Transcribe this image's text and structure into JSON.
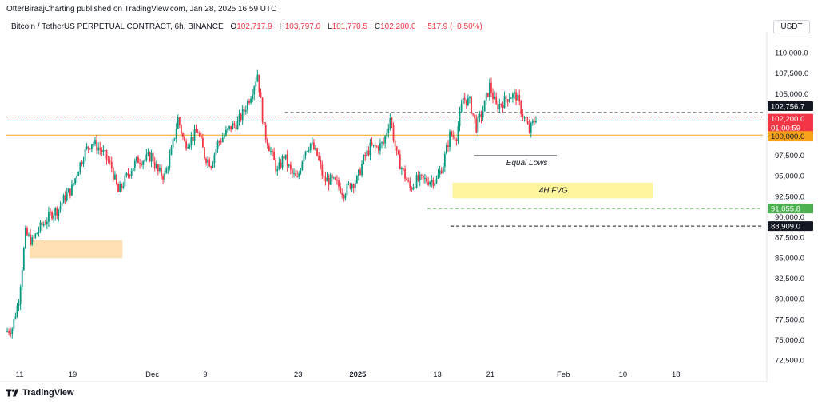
{
  "header": {
    "published": "OtterBiraajCharting published on TradingView.com, Jan 28, 2025 16:59 UTC",
    "symbol": "Bitcoin / TetherUS PERPETUAL CONTRACT, 6h, BINANCE",
    "o_label": "O",
    "open": "102,717.9",
    "h_label": "H",
    "high": "103,797.0",
    "l_label": "L",
    "low": "101,770.5",
    "c_label": "C",
    "close": "102,200.0",
    "change": "−517.9 (−0.50%)",
    "currency": "USDT"
  },
  "brand": "TradingView",
  "colors": {
    "up": "#089981",
    "down": "#f23645",
    "orange": "#f7a21b",
    "zone_orange": "#ffe0b2",
    "zone_yellow": "#fff59d",
    "green_line": "#4caf50",
    "black_line": "#131722",
    "red_dotted": "#f23645"
  },
  "chart_data": {
    "type": "candlestick",
    "timeframe": "6h",
    "xlabels": [
      "11",
      "19",
      "Dec",
      "9",
      "23",
      "2025",
      "13",
      "21",
      "Feb",
      "10",
      "18"
    ],
    "ylim": [
      71500,
      112000
    ],
    "yticks": [
      "110,000.0",
      "107,500.0",
      "105,000.0",
      "100,000.0",
      "97,500.0",
      "95,000.0",
      "92,500.0",
      "90,000.0",
      "87,500.0",
      "85,000.0",
      "82,500.0",
      "80,000.0",
      "77,500.0",
      "75,000.0",
      "72,500.0"
    ],
    "close_path": [
      [
        "Nov 9",
        76000
      ],
      [
        "Nov 10",
        76500
      ],
      [
        "Nov 11",
        80000
      ],
      [
        "Nov 12",
        88000
      ],
      [
        "Nov 13",
        87000
      ],
      [
        "Nov 14",
        88500
      ],
      [
        "Nov 15",
        89500
      ],
      [
        "Nov 16",
        90500
      ],
      [
        "Nov 17",
        91000
      ],
      [
        "Nov 18",
        92500
      ],
      [
        "Nov 19",
        93500
      ],
      [
        "Nov 20",
        96000
      ],
      [
        "Nov 21",
        98000
      ],
      [
        "Nov 22",
        99200
      ],
      [
        "Nov 23",
        98500
      ],
      [
        "Nov 24",
        97500
      ],
      [
        "Nov 25",
        96000
      ],
      [
        "Nov 26",
        93000
      ],
      [
        "Nov 27",
        94500
      ],
      [
        "Nov 28",
        96000
      ],
      [
        "Nov 29",
        97000
      ],
      [
        "Nov 30",
        97000
      ],
      [
        "Dec 1",
        97500
      ],
      [
        "Dec 2",
        95500
      ],
      [
        "Dec 3",
        95000
      ],
      [
        "Dec 4",
        98000
      ],
      [
        "Dec 5",
        102000
      ],
      [
        "Dec 6",
        99000
      ],
      [
        "Dec 7",
        99500
      ],
      [
        "Dec 8",
        100500
      ],
      [
        "Dec 9",
        97500
      ],
      [
        "Dec 10",
        96500
      ],
      [
        "Dec 11",
        99000
      ],
      [
        "Dec 12",
        100000
      ],
      [
        "Dec 13",
        101000
      ],
      [
        "Dec 14",
        101500
      ],
      [
        "Dec 15",
        103000
      ],
      [
        "Dec 16",
        105000
      ],
      [
        "Dec 17",
        107500
      ],
      [
        "Dec 18",
        100500
      ],
      [
        "Dec 19",
        98000
      ],
      [
        "Dec 20",
        95500
      ],
      [
        "Dec 21",
        97500
      ],
      [
        "Dec 22",
        95500
      ],
      [
        "Dec 23",
        94500
      ],
      [
        "Dec 24",
        98000
      ],
      [
        "Dec 25",
        99000
      ],
      [
        "Dec 26",
        97500
      ],
      [
        "Dec 27",
        94500
      ],
      [
        "Dec 28",
        94500
      ],
      [
        "Dec 29",
        94000
      ],
      [
        "Dec 30",
        93000
      ],
      [
        "Dec 31",
        94000
      ],
      [
        "Jan 1",
        94500
      ],
      [
        "Jan 2",
        97000
      ],
      [
        "Jan 3",
        98500
      ],
      [
        "Jan 4",
        98500
      ],
      [
        "Jan 5",
        99000
      ],
      [
        "Jan 6",
        102200
      ],
      [
        "Jan 7",
        97500
      ],
      [
        "Jan 8",
        95500
      ],
      [
        "Jan 9",
        93500
      ],
      [
        "Jan 10",
        94500
      ],
      [
        "Jan 11",
        94500
      ],
      [
        "Jan 12",
        94500
      ],
      [
        "Jan 13",
        94500
      ],
      [
        "Jan 14",
        96500
      ],
      [
        "Jan 15",
        100000
      ],
      [
        "Jan 16",
        100000
      ],
      [
        "Jan 17",
        104500
      ],
      [
        "Jan 18",
        104000
      ],
      [
        "Jan 19",
        101000
      ],
      [
        "Jan 20",
        103000
      ],
      [
        "Jan 21",
        106000
      ],
      [
        "Jan 22",
        103500
      ],
      [
        "Jan 23",
        104000
      ],
      [
        "Jan 24",
        104800
      ],
      [
        "Jan 25",
        104800
      ],
      [
        "Jan 26",
        102500
      ],
      [
        "Jan 27",
        100500
      ],
      [
        "Jan 28",
        102200
      ]
    ],
    "levels": [
      {
        "name": "Equal Lows line",
        "value": 97500
      },
      {
        "name": "100,000 level",
        "value": 100000
      },
      {
        "name": "102,756.7 level",
        "value": 102756.7
      },
      {
        "name": "91,055.8 level",
        "value": 91055.8
      },
      {
        "name": "88,909.0 level",
        "value": 88909
      }
    ],
    "zones": [
      {
        "label": "",
        "from": 85000,
        "to": 87200
      },
      {
        "label": "4H FVG",
        "from": 92300,
        "to": 94200
      }
    ],
    "annotations": [
      "Equal Lows",
      "4H FVG"
    ],
    "price_labels": [
      {
        "text": "102,756.7",
        "sub": ""
      },
      {
        "text": "102,200.0",
        "sub": "01:00:59"
      },
      {
        "text": "100,000.0",
        "sub": ""
      },
      {
        "text": "91,055.8",
        "sub": ""
      },
      {
        "text": "88,909.0",
        "sub": ""
      }
    ]
  }
}
